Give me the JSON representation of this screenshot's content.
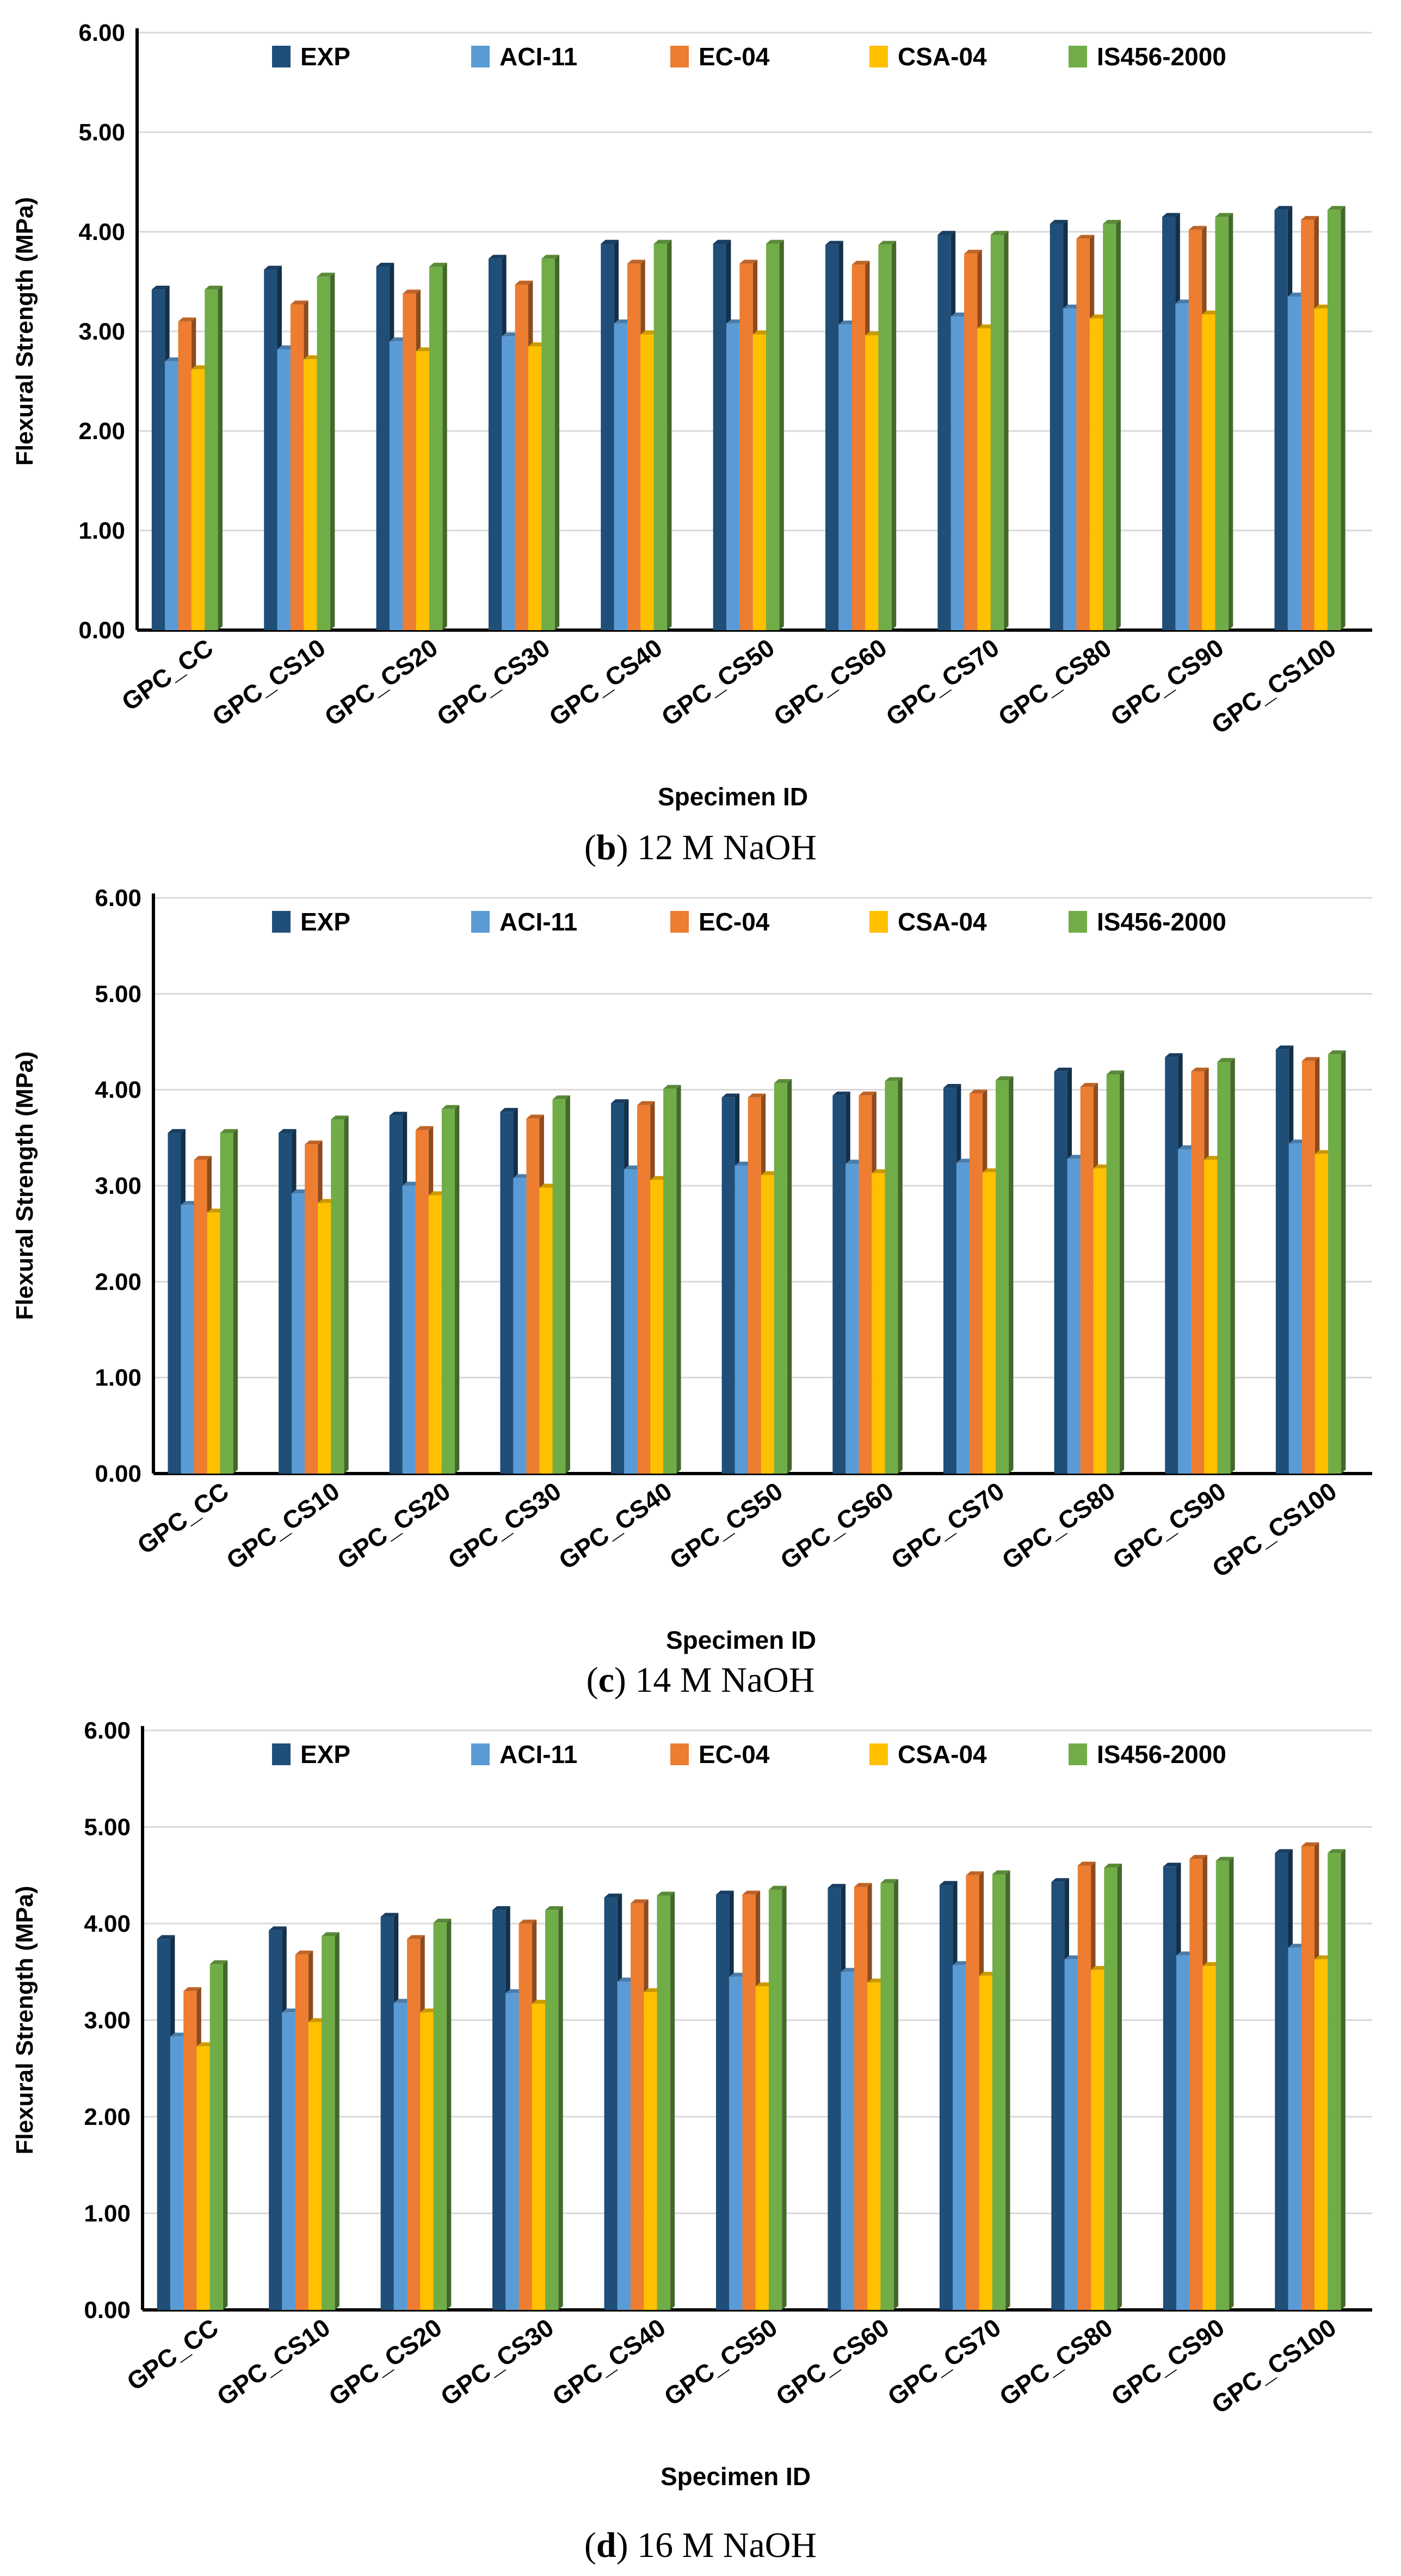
{
  "colors": {
    "EXP": "#1f4e79",
    "ACI-11": "#5b9bd5",
    "EC-04": "#ed7d31",
    "CSA-04": "#ffc000",
    "IS456-2000": "#70ad47",
    "grid": "#d9d9d9",
    "axis": "#000000"
  },
  "chart_data": [
    {
      "type": "bar",
      "caption_letter": "b",
      "caption_text": " 12 M NaOH",
      "ylabel": "Flexural Strength (MPa)",
      "xlabel": "Specimen ID",
      "ylim": [
        0,
        6
      ],
      "yticks": [
        "0.00",
        "1.00",
        "2.00",
        "3.00",
        "4.00",
        "5.00",
        "6.00"
      ],
      "grid": true,
      "legend": "top",
      "categories": [
        "GPC_CC",
        "GPC_CS10",
        "GPC_CS20",
        "GPC_CS30",
        "GPC_CS40",
        "GPC_CS50",
        "GPC_CS60",
        "GPC_CS70",
        "GPC_CS80",
        "GPC_CS90",
        "GPC_CS100"
      ],
      "series": [
        {
          "name": "EXP",
          "values": [
            3.42,
            3.62,
            3.65,
            3.73,
            3.88,
            3.88,
            3.87,
            3.97,
            4.08,
            4.15,
            4.22
          ]
        },
        {
          "name": "ACI-11",
          "values": [
            2.7,
            2.82,
            2.9,
            2.95,
            3.08,
            3.08,
            3.07,
            3.15,
            3.23,
            3.28,
            3.35
          ]
        },
        {
          "name": "EC-04",
          "values": [
            3.1,
            3.27,
            3.38,
            3.47,
            3.68,
            3.68,
            3.67,
            3.78,
            3.93,
            4.02,
            4.12
          ]
        },
        {
          "name": "CSA-04",
          "values": [
            2.62,
            2.72,
            2.8,
            2.85,
            2.97,
            2.97,
            2.96,
            3.03,
            3.13,
            3.17,
            3.23
          ]
        },
        {
          "name": "IS456-2000",
          "values": [
            3.42,
            3.55,
            3.65,
            3.73,
            3.88,
            3.88,
            3.87,
            3.97,
            4.08,
            4.15,
            4.22
          ]
        }
      ]
    },
    {
      "type": "bar",
      "caption_letter": "c",
      "caption_text": " 14 M NaOH",
      "ylabel": "Flexural Strength (MPa)",
      "xlabel": "Specimen ID",
      "ylim": [
        0,
        6
      ],
      "yticks": [
        "0.00",
        "1.00",
        "2.00",
        "3.00",
        "4.00",
        "5.00",
        "6.00"
      ],
      "grid": true,
      "legend": "top",
      "categories": [
        "GPC_CC",
        "GPC_CS10",
        "GPC_CS20",
        "GPC_CS30",
        "GPC_CS40",
        "GPC_CS50",
        "GPC_CS60",
        "GPC_CS70",
        "GPC_CS80",
        "GPC_CS90",
        "GPC_CS100"
      ],
      "series": [
        {
          "name": "EXP",
          "values": [
            3.55,
            3.55,
            3.73,
            3.77,
            3.86,
            3.92,
            3.94,
            4.02,
            4.19,
            4.34,
            4.42
          ]
        },
        {
          "name": "ACI-11",
          "values": [
            2.8,
            2.92,
            3.0,
            3.08,
            3.17,
            3.21,
            3.23,
            3.24,
            3.28,
            3.38,
            3.44
          ]
        },
        {
          "name": "EC-04",
          "values": [
            3.27,
            3.43,
            3.58,
            3.7,
            3.84,
            3.92,
            3.94,
            3.96,
            4.03,
            4.19,
            4.3
          ]
        },
        {
          "name": "CSA-04",
          "values": [
            2.72,
            2.82,
            2.9,
            2.98,
            3.06,
            3.11,
            3.13,
            3.14,
            3.18,
            3.27,
            3.33
          ]
        },
        {
          "name": "IS456-2000",
          "values": [
            3.55,
            3.69,
            3.8,
            3.9,
            4.01,
            4.07,
            4.09,
            4.1,
            4.16,
            4.29,
            4.37
          ]
        }
      ]
    },
    {
      "type": "bar",
      "caption_letter": "d",
      "caption_text": " 16 M NaOH",
      "ylabel": "Flexural Strength (MPa)",
      "xlabel": "Specimen ID",
      "ylim": [
        0,
        6
      ],
      "yticks": [
        "0.00",
        "1.00",
        "2.00",
        "3.00",
        "4.00",
        "5.00",
        "6.00"
      ],
      "grid": true,
      "legend": "top",
      "categories": [
        "GPC_CC",
        "GPC_CS10",
        "GPC_CS20",
        "GPC_CS30",
        "GPC_CS40",
        "GPC_CS50",
        "GPC_CS60",
        "GPC_CS70",
        "GPC_CS80",
        "GPC_CS90",
        "GPC_CS100"
      ],
      "series": [
        {
          "name": "EXP",
          "values": [
            3.84,
            3.93,
            4.07,
            4.14,
            4.27,
            4.3,
            4.37,
            4.4,
            4.43,
            4.59,
            4.73
          ]
        },
        {
          "name": "ACI-11",
          "values": [
            2.83,
            3.08,
            3.18,
            3.28,
            3.4,
            3.45,
            3.5,
            3.57,
            3.63,
            3.67,
            3.75
          ]
        },
        {
          "name": "EC-04",
          "values": [
            3.3,
            3.68,
            3.84,
            4.0,
            4.21,
            4.3,
            4.38,
            4.5,
            4.6,
            4.67,
            4.8
          ]
        },
        {
          "name": "CSA-04",
          "values": [
            2.73,
            2.98,
            3.08,
            3.17,
            3.29,
            3.35,
            3.39,
            3.46,
            3.52,
            3.56,
            3.63
          ]
        },
        {
          "name": "IS456-2000",
          "values": [
            3.58,
            3.87,
            4.01,
            4.14,
            4.29,
            4.35,
            4.42,
            4.51,
            4.58,
            4.65,
            4.73
          ]
        }
      ]
    }
  ]
}
